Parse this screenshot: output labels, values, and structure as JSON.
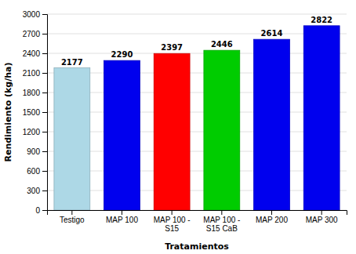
{
  "chart_data": {
    "type": "bar",
    "categories": [
      "Testigo",
      "MAP 100",
      "MAP 100 -\nS15",
      "MAP 100 -\nS15 CaB",
      "MAP 200",
      "MAP 300"
    ],
    "values": [
      2177,
      2290,
      2397,
      2446,
      2614,
      2822
    ],
    "colors": [
      "#add8e6",
      "#0000ee",
      "#ff0000",
      "#00cc00",
      "#0000ee",
      "#0000ee"
    ],
    "xlabel": "Tratamientos",
    "ylabel": "Rendimiento (kg/ha)",
    "ylim": [
      0,
      3000
    ],
    "yticks": [
      0,
      300,
      600,
      900,
      1200,
      1500,
      1800,
      2100,
      2400,
      2700,
      3000
    ],
    "grid": true,
    "data_labels": true
  }
}
